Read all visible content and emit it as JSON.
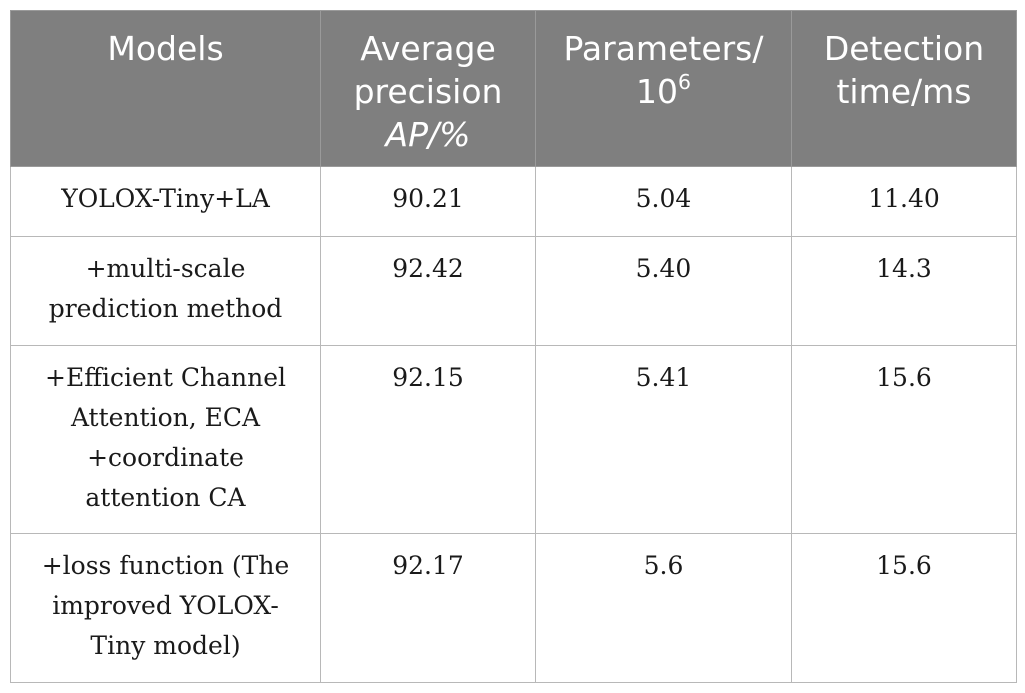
{
  "table": {
    "headers": {
      "models": "Models",
      "ap_line1": "Average",
      "ap_line2": "precision",
      "ap_symbol": "AP",
      "ap_unit": "/%",
      "params_line1": "Parameters/",
      "params_base": "10",
      "params_exp": "6",
      "time_line1": "Detection",
      "time_line2": "time/ms"
    },
    "rows": [
      {
        "model_lines": [
          "YOLOX-Tiny+LA"
        ],
        "ap": "90.21",
        "params": "5.04",
        "time": "11.40"
      },
      {
        "model_lines": [
          "+multi-scale",
          "prediction method"
        ],
        "ap": "92.42",
        "params": "5.40",
        "time": "14.3"
      },
      {
        "model_lines": [
          "+Efficient Channel",
          "Attention, ECA",
          "+coordinate",
          "attention CA"
        ],
        "ap": "92.15",
        "params": "5.41",
        "time": "15.6"
      },
      {
        "model_lines": [
          "+loss function (The",
          "improved YOLOX-",
          "Tiny model)"
        ],
        "ap": "92.17",
        "params": "5.6",
        "time": "15.6"
      }
    ]
  }
}
